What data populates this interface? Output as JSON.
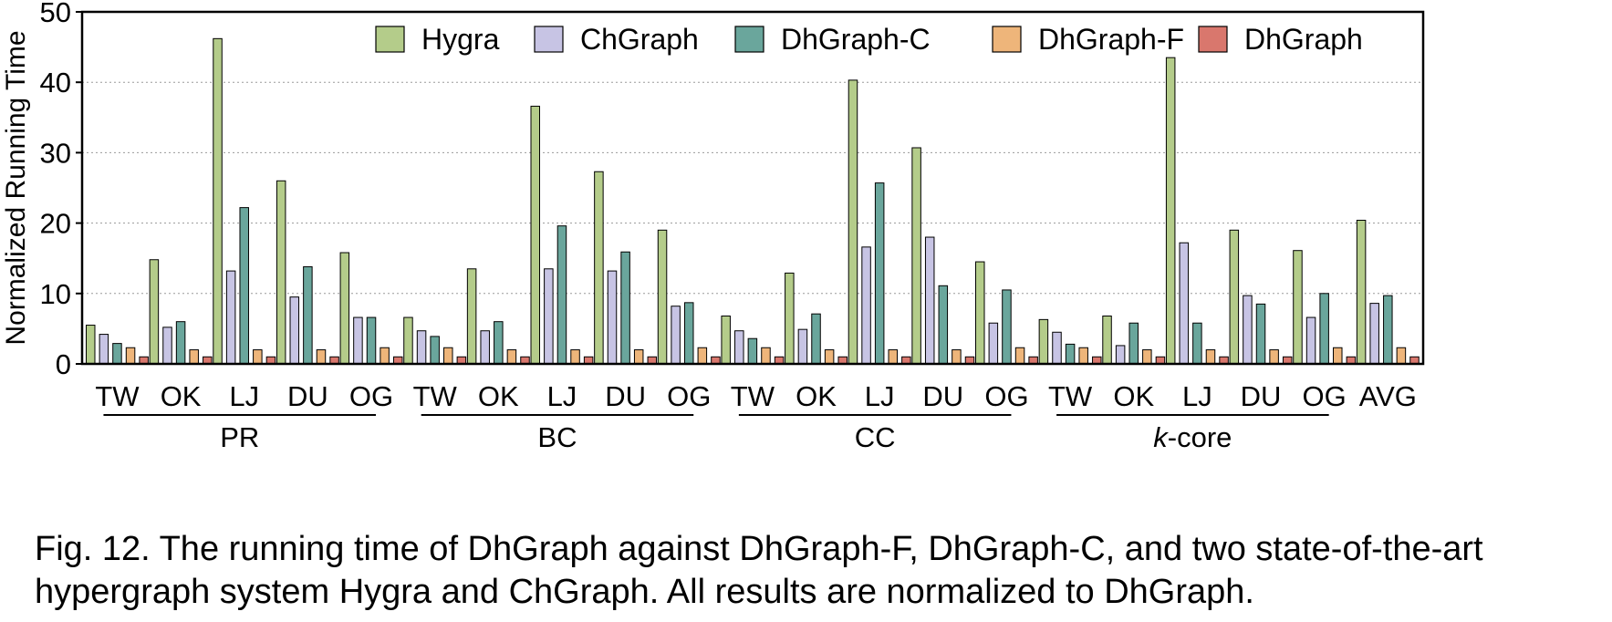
{
  "chart_data": {
    "type": "bar",
    "ylabel": "Normalized Running Time",
    "xlabel": "",
    "ylim": [
      0,
      50
    ],
    "yticks": [
      0,
      10,
      20,
      30,
      40,
      50
    ],
    "grid": "horizontal dotted",
    "legend_placement": "top-right",
    "groups": [
      {
        "name": "PR",
        "name_style": "normal",
        "categories": [
          "TW",
          "OK",
          "LJ",
          "DU",
          "OG"
        ]
      },
      {
        "name": "BC",
        "name_style": "normal",
        "categories": [
          "TW",
          "OK",
          "LJ",
          "DU",
          "OG"
        ]
      },
      {
        "name": "CC",
        "name_style": "normal",
        "categories": [
          "TW",
          "OK",
          "LJ",
          "DU",
          "OG"
        ]
      },
      {
        "name": "k-core",
        "name_style": "k-italic",
        "categories": [
          "TW",
          "OK",
          "LJ",
          "DU",
          "OG"
        ]
      },
      {
        "name": "",
        "name_style": "normal",
        "categories": [
          "AVG"
        ]
      }
    ],
    "series": [
      {
        "name": "Hygra",
        "color": "#b4cc8a",
        "values": [
          5.5,
          14.8,
          46.2,
          26.0,
          15.8,
          6.6,
          13.5,
          36.6,
          27.3,
          19.0,
          6.8,
          12.9,
          40.3,
          30.7,
          14.5,
          6.3,
          6.8,
          43.5,
          19.0,
          16.1,
          20.4
        ]
      },
      {
        "name": "ChGraph",
        "color": "#c7c4e4",
        "values": [
          4.2,
          5.2,
          13.2,
          9.5,
          6.6,
          4.7,
          4.7,
          13.5,
          13.2,
          8.2,
          4.7,
          4.9,
          16.6,
          18.0,
          5.8,
          4.5,
          2.6,
          17.2,
          9.7,
          6.6,
          8.6
        ]
      },
      {
        "name": "DhGraph-C",
        "color": "#6aa69c",
        "values": [
          2.9,
          6.0,
          22.2,
          13.8,
          6.6,
          3.9,
          6.0,
          19.6,
          15.9,
          8.7,
          3.6,
          7.1,
          25.7,
          11.1,
          10.5,
          2.8,
          5.8,
          5.8,
          8.5,
          10.0,
          9.7
        ]
      },
      {
        "name": "DhGraph-F",
        "color": "#eeb57a",
        "values": [
          2.3,
          2.0,
          2.0,
          2.0,
          2.3,
          2.3,
          2.0,
          2.0,
          2.0,
          2.3,
          2.3,
          2.0,
          2.0,
          2.0,
          2.3,
          2.3,
          2.0,
          2.0,
          2.0,
          2.3,
          2.3
        ]
      },
      {
        "name": "DhGraph",
        "color": "#d9776d",
        "values": [
          1.0,
          1.0,
          1.0,
          1.0,
          1.0,
          1.0,
          1.0,
          1.0,
          1.0,
          1.0,
          1.0,
          1.0,
          1.0,
          1.0,
          1.0,
          1.0,
          1.0,
          1.0,
          1.0,
          1.0,
          1.0
        ]
      }
    ]
  },
  "caption": {
    "text": "Fig. 12. The running time of DhGraph against DhGraph-F, DhGraph-C, and two state-of-the-art hypergraph system Hygra and ChGraph. All results are normalized to DhGraph."
  }
}
